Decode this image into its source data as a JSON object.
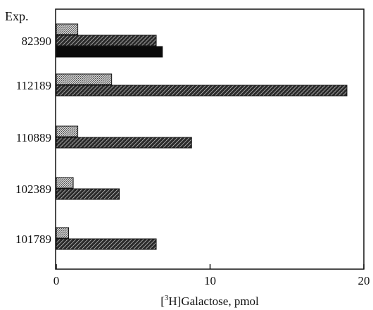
{
  "chart_data": {
    "type": "bar",
    "orientation": "horizontal",
    "title": "",
    "ylabel": "Exp.",
    "xlabel_prefix": "[",
    "xlabel_sup": "3",
    "xlabel_suffix": "H]Galactose, pmol",
    "xlim": [
      0,
      20
    ],
    "xticks": [
      "0",
      "10",
      "20"
    ],
    "categories": [
      "82390",
      "112189",
      "110889",
      "102389",
      "101789"
    ],
    "groups": [
      {
        "category": "82390",
        "values": [
          1.4,
          6.5,
          6.9
        ]
      },
      {
        "category": "112189",
        "values": [
          3.6,
          18.9
        ]
      },
      {
        "category": "110889",
        "values": [
          1.4,
          8.8
        ]
      },
      {
        "category": "102389",
        "values": [
          1.1,
          4.1
        ]
      },
      {
        "category": "101789",
        "values": [
          0.8,
          6.5
        ]
      }
    ],
    "bar_styles": [
      "light-stipple",
      "diagonal-hatch",
      "solid-black"
    ],
    "grid": false,
    "legend": "none"
  }
}
